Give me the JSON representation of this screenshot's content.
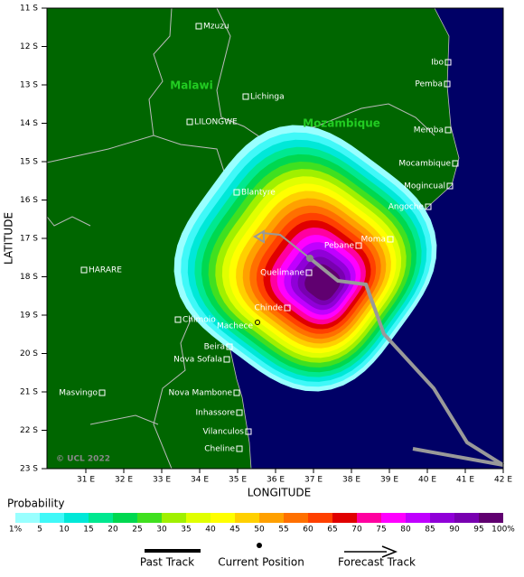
{
  "axes": {
    "y_label": "LATITUDE",
    "x_label": "LONGITUDE",
    "lat_ticks": [
      "11 S",
      "12 S",
      "13 S",
      "14 S",
      "15 S",
      "16 S",
      "17 S",
      "18 S",
      "19 S",
      "20 S",
      "21 S",
      "22 S",
      "23 S"
    ],
    "lon_ticks": [
      "31 E",
      "32 E",
      "33 E",
      "34 E",
      "35 E",
      "36 E",
      "37 E",
      "38 E",
      "39 E",
      "40 E",
      "41 E",
      "42 E"
    ]
  },
  "countries": [
    "Malawi",
    "Mozambique"
  ],
  "places": [
    "Mzuzu",
    "Lichinga",
    "LILONGWE",
    "Blantyre",
    "HARARE",
    "Chimoio",
    "Machece",
    "Chinde",
    "Quelimane",
    "Pebane",
    "Moma",
    "Angoche",
    "Mogincual",
    "Mocambique",
    "Memba",
    "Pemba",
    "Ibo",
    "Beira",
    "Nova Sofala",
    "Masvingo",
    "Nova Mambone",
    "Inhassore",
    "Vilanculos",
    "Cheline"
  ],
  "copyright": "© UCL 2022",
  "probability_legend": {
    "title": "Probability",
    "labels": [
      "1%",
      "5",
      "10",
      "15",
      "20",
      "25",
      "30",
      "35",
      "40",
      "45",
      "50",
      "55",
      "60",
      "65",
      "70",
      "75",
      "80",
      "85",
      "90",
      "95",
      "100%"
    ],
    "colors": [
      "#99ffff",
      "#40f8f8",
      "#00e8d8",
      "#00e890",
      "#00d850",
      "#40e020",
      "#a0f000",
      "#e0ff00",
      "#ffff00",
      "#ffd000",
      "#ffa000",
      "#ff7000",
      "#ff4000",
      "#e00000",
      "#ff00a0",
      "#ff00ff",
      "#c000ff",
      "#9000d8",
      "#7800b0",
      "#600070"
    ]
  },
  "track_legend": [
    "Past Track",
    "Current Position",
    "Forecast Track"
  ]
}
